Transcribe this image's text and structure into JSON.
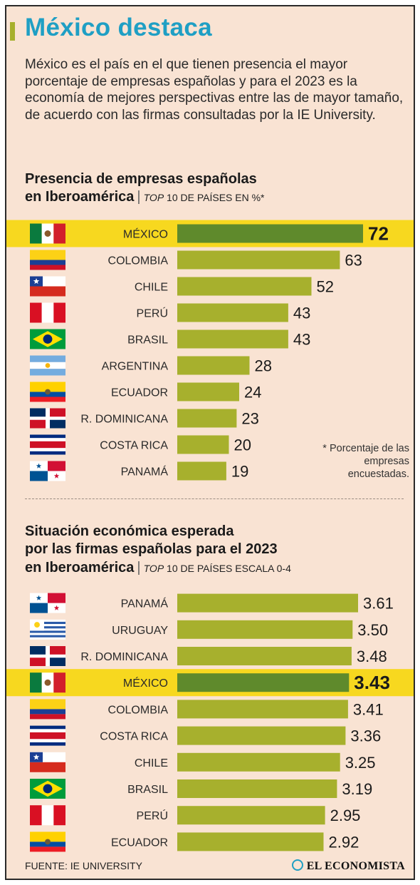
{
  "title": "México destaca",
  "intro": "México es el país en el que tienen presencia el mayor porcentaje de empresas españolas y para el 2023 es la economía de mejores perspectivas entre las de mayor tamaño, de acuerdo con las firmas consultadas por la IE University.",
  "section1": {
    "title_line1": "Presencia de empresas españolas",
    "title_line2": "en Iberoamérica",
    "subtitle_top": "TOP",
    "subtitle_rest": " 10 DE PAÍSES EN %*",
    "footnote": "* Porcentaje de las empresas encuestadas."
  },
  "section2": {
    "title_line1": "Situación económica esperada",
    "title_line2": "por las firmas españolas para el 2023",
    "title_line3": "en Iberoamérica",
    "subtitle_top": "TOP",
    "subtitle_rest": " 10 DE PAÍSES ESCALA 0-4"
  },
  "source": "FUENTE: IE UNIVERSITY",
  "brand": "EL ECONOMISTA",
  "colors": {
    "bar": "#a7b02d",
    "highlight_bar": "#5f8a2c",
    "highlight_band": "#f7d81f",
    "title": "#1f9fc4",
    "background": "#f9e3d3"
  },
  "chart_data": [
    {
      "type": "bar",
      "orientation": "horizontal",
      "highlight": "MÉXICO",
      "categories": [
        "MÉXICO",
        "COLOMBIA",
        "CHILE",
        "PERÚ",
        "BRASIL",
        "ARGENTINA",
        "ECUADOR",
        "R. DOMINICANA",
        "COSTA RICA",
        "PANAMÁ"
      ],
      "values": [
        72,
        63,
        52,
        43,
        43,
        28,
        24,
        23,
        20,
        19
      ],
      "labels": [
        "72",
        "63",
        "52",
        "43",
        "43",
        "28",
        "24",
        "23",
        "20",
        "19"
      ],
      "flags": [
        "mexico",
        "colombia",
        "chile",
        "peru",
        "brasil",
        "argentina",
        "ecuador",
        "rdominicana",
        "costarica",
        "panama"
      ]
    },
    {
      "type": "bar",
      "orientation": "horizontal",
      "highlight": "MÉXICO",
      "categories": [
        "PANAMÁ",
        "URUGUAY",
        "R. DOMINICANA",
        "MÉXICO",
        "COLOMBIA",
        "COSTA RICA",
        "CHILE",
        "BRASIL",
        "PERÚ",
        "ECUADOR"
      ],
      "values": [
        3.61,
        3.5,
        3.48,
        3.43,
        3.41,
        3.36,
        3.25,
        3.19,
        2.95,
        2.92
      ],
      "labels": [
        "3.61",
        "3.50",
        "3.48",
        "3.43",
        "3.41",
        "3.36",
        "3.25",
        "3.19",
        "2.95",
        "2.92"
      ],
      "flags": [
        "panama",
        "uruguay",
        "rdominicana",
        "mexico",
        "colombia",
        "costarica",
        "chile",
        "brasil",
        "peru",
        "ecuador"
      ]
    }
  ]
}
